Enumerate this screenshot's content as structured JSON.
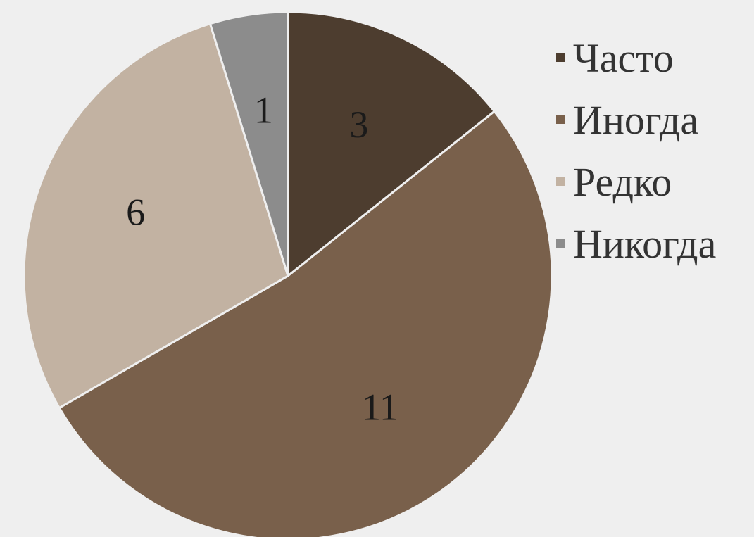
{
  "chart_data": {
    "type": "pie",
    "categories": [
      "Часто",
      "Иногда",
      "Редко",
      "Никогда"
    ],
    "values": [
      3,
      11,
      6,
      1
    ],
    "colors": [
      "#4d3d2f",
      "#79604b",
      "#c2b2a2",
      "#8c8c8c"
    ],
    "data_labels": [
      "3",
      "11",
      "6",
      "1"
    ],
    "start_angle": "12 o'clock",
    "direction": "clockwise",
    "legend_position": "right"
  }
}
